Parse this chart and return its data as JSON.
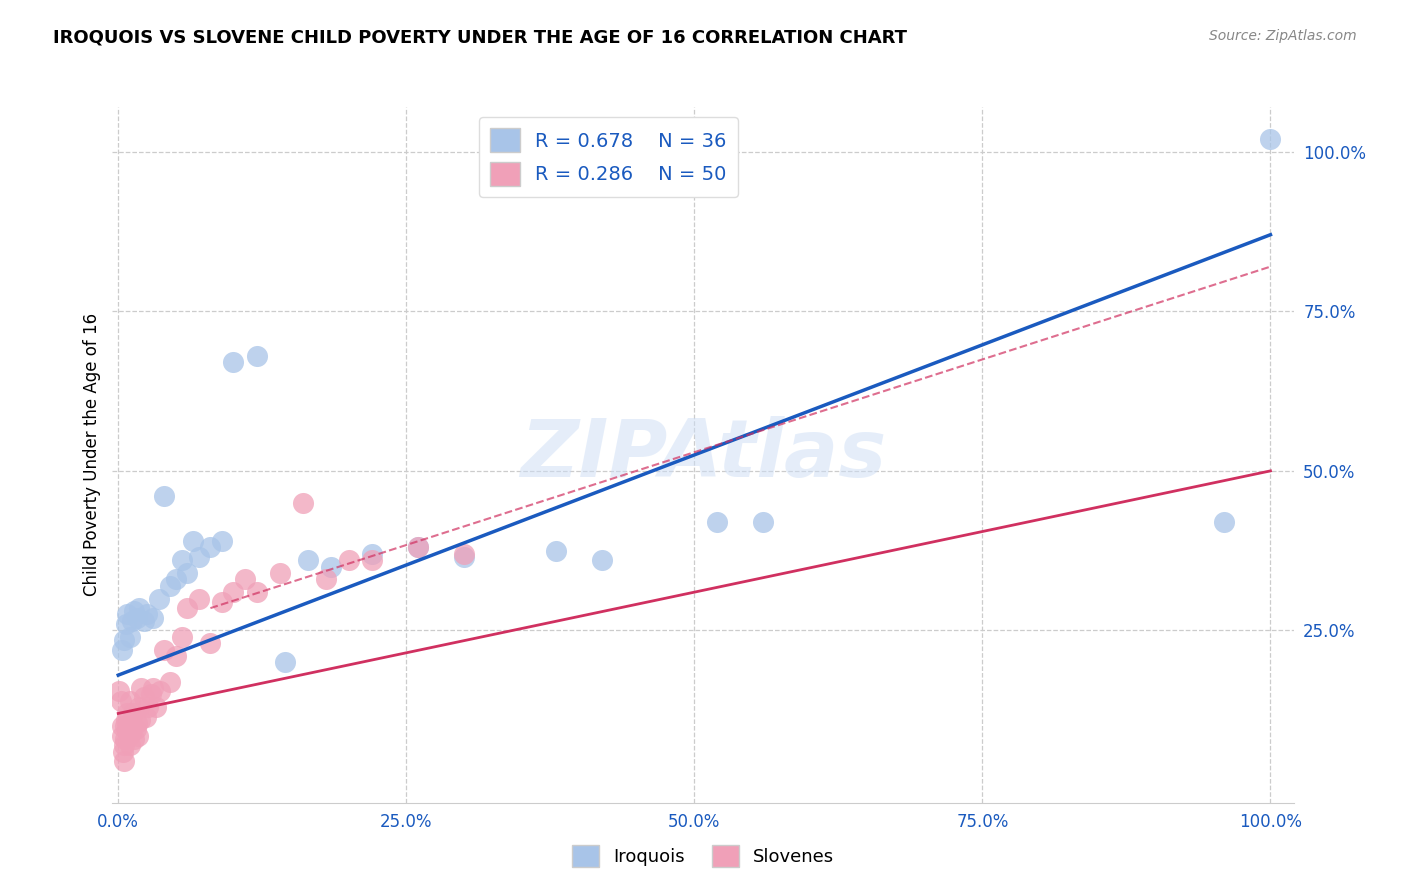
{
  "title": "IROQUOIS VS SLOVENE CHILD POVERTY UNDER THE AGE OF 16 CORRELATION CHART",
  "source": "Source: ZipAtlas.com",
  "ylabel": "Child Poverty Under the Age of 16",
  "watermark": "ZIPAtlas",
  "iroquois_R": 0.678,
  "iroquois_N": 36,
  "slovene_R": 0.286,
  "slovene_N": 50,
  "iroquois_color": "#a8c4e8",
  "iroquois_line_color": "#1a5abf",
  "slovene_color": "#f0a0b8",
  "slovene_line_color": "#d03060",
  "iroquois_x": [
    0.003,
    0.005,
    0.007,
    0.008,
    0.01,
    0.012,
    0.014,
    0.016,
    0.018,
    0.022,
    0.025,
    0.03,
    0.035,
    0.04,
    0.045,
    0.05,
    0.055,
    0.06,
    0.065,
    0.07,
    0.08,
    0.09,
    0.1,
    0.12,
    0.145,
    0.165,
    0.185,
    0.22,
    0.26,
    0.3,
    0.38,
    0.42,
    0.52,
    0.56,
    0.96,
    1.0
  ],
  "iroquois_y": [
    0.22,
    0.235,
    0.26,
    0.275,
    0.24,
    0.265,
    0.28,
    0.27,
    0.285,
    0.265,
    0.275,
    0.27,
    0.3,
    0.46,
    0.32,
    0.33,
    0.36,
    0.34,
    0.39,
    0.365,
    0.38,
    0.39,
    0.67,
    0.68,
    0.2,
    0.36,
    0.35,
    0.37,
    0.38,
    0.365,
    0.375,
    0.36,
    0.42,
    0.42,
    0.42,
    1.02
  ],
  "slovene_x": [
    0.001,
    0.002,
    0.003,
    0.003,
    0.004,
    0.005,
    0.005,
    0.006,
    0.006,
    0.007,
    0.008,
    0.008,
    0.009,
    0.01,
    0.01,
    0.011,
    0.012,
    0.013,
    0.014,
    0.015,
    0.016,
    0.017,
    0.018,
    0.019,
    0.02,
    0.022,
    0.024,
    0.026,
    0.028,
    0.03,
    0.033,
    0.036,
    0.04,
    0.045,
    0.05,
    0.055,
    0.06,
    0.07,
    0.08,
    0.09,
    0.1,
    0.11,
    0.12,
    0.14,
    0.16,
    0.18,
    0.2,
    0.22,
    0.26,
    0.3
  ],
  "slovene_y": [
    0.155,
    0.14,
    0.1,
    0.085,
    0.06,
    0.045,
    0.07,
    0.08,
    0.1,
    0.11,
    0.095,
    0.12,
    0.085,
    0.07,
    0.14,
    0.09,
    0.1,
    0.12,
    0.08,
    0.095,
    0.105,
    0.085,
    0.13,
    0.11,
    0.16,
    0.145,
    0.115,
    0.13,
    0.15,
    0.16,
    0.13,
    0.155,
    0.22,
    0.17,
    0.21,
    0.24,
    0.285,
    0.3,
    0.23,
    0.295,
    0.31,
    0.33,
    0.31,
    0.34,
    0.45,
    0.33,
    0.36,
    0.36,
    0.38,
    0.37
  ],
  "iroquois_line_x0": 0.0,
  "iroquois_line_y0": 0.18,
  "iroquois_line_x1": 1.0,
  "iroquois_line_y1": 0.87,
  "slovene_line_x0": 0.0,
  "slovene_line_y0": 0.12,
  "slovene_line_x1": 1.0,
  "slovene_line_y1": 0.5,
  "xlim": [
    -0.005,
    1.02
  ],
  "ylim": [
    -0.02,
    1.07
  ],
  "xticks": [
    0,
    0.25,
    0.5,
    0.75,
    1.0
  ],
  "xtick_labels": [
    "0.0%",
    "25.0%",
    "50.0%",
    "75.0%",
    "100.0%"
  ],
  "yticks": [
    0.25,
    0.5,
    0.75,
    1.0
  ],
  "ytick_labels": [
    "25.0%",
    "50.0%",
    "75.0%",
    "100.0%"
  ],
  "background_color": "#ffffff",
  "grid_color": "#cccccc"
}
